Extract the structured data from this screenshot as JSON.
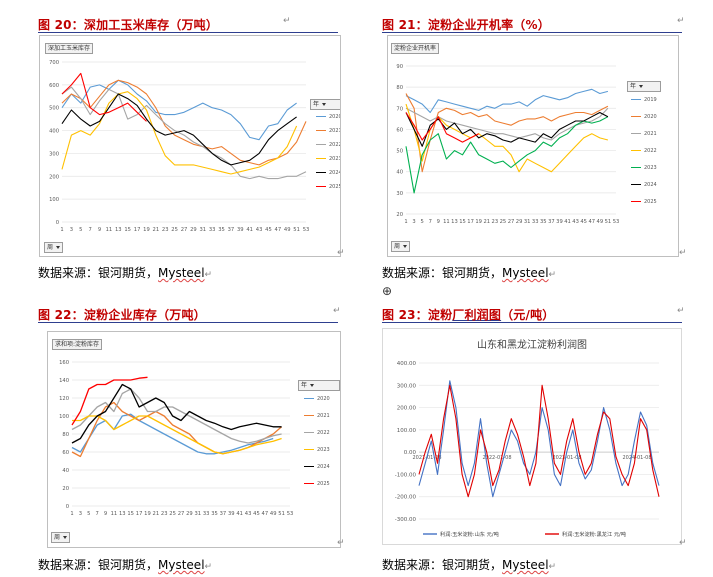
{
  "figure_20": {
    "heading": "图 20：深加工玉米库存（万吨）",
    "source_label": "数据来源：银河期货，",
    "source_brand": "Mysteel",
    "chip_title": "深加工玉米库存",
    "field_year": "年",
    "field_week": "周",
    "chart_data": {
      "type": "line",
      "y_ticks": [
        "0",
        "100",
        "200",
        "300",
        "400",
        "500",
        "600",
        "700"
      ],
      "ylim": [
        0,
        700
      ],
      "x": [
        1,
        3,
        5,
        7,
        9,
        11,
        13,
        15,
        17,
        19,
        21,
        23,
        25,
        27,
        29,
        31,
        33,
        35,
        37,
        39,
        41,
        43,
        45,
        47,
        49,
        51,
        53
      ],
      "x_labels": [
        "1",
        "3",
        "5",
        "7",
        "9",
        "11",
        "13",
        "15",
        "17",
        "19",
        "21",
        "23",
        "25",
        "27",
        "29",
        "31",
        "33",
        "35",
        "37",
        "39",
        "41",
        "43",
        "45",
        "47",
        "49",
        "51",
        "53"
      ],
      "grid": true,
      "legend_position": "right",
      "series": [
        {
          "name": "2020",
          "color": "#5b9bd5",
          "values": [
            500,
            560,
            520,
            590,
            600,
            580,
            620,
            600,
            560,
            530,
            480,
            470,
            470,
            480,
            500,
            520,
            500,
            490,
            470,
            430,
            370,
            360,
            420,
            430,
            490,
            520,
            null
          ]
        },
        {
          "name": "2021",
          "color": "#ed7d31",
          "values": [
            520,
            560,
            540,
            500,
            550,
            600,
            620,
            610,
            590,
            560,
            500,
            420,
            380,
            360,
            340,
            330,
            320,
            330,
            300,
            270,
            260,
            250,
            270,
            280,
            300,
            350,
            440
          ]
        },
        {
          "name": "2022",
          "color": "#a5a5a5",
          "values": [
            560,
            590,
            540,
            470,
            530,
            580,
            560,
            450,
            470,
            510,
            470,
            430,
            400,
            380,
            350,
            330,
            300,
            280,
            250,
            200,
            190,
            200,
            190,
            190,
            200,
            200,
            220
          ]
        },
        {
          "name": "2023",
          "color": "#ffc000",
          "values": [
            230,
            380,
            400,
            380,
            430,
            520,
            560,
            570,
            540,
            490,
            380,
            290,
            250,
            250,
            250,
            240,
            230,
            220,
            210,
            220,
            230,
            240,
            260,
            280,
            330,
            420,
            null
          ]
        },
        {
          "name": "2024",
          "color": "#000000",
          "values": [
            430,
            490,
            450,
            420,
            440,
            500,
            560,
            540,
            510,
            450,
            400,
            380,
            390,
            400,
            380,
            340,
            300,
            270,
            250,
            260,
            270,
            300,
            360,
            400,
            430,
            460,
            null
          ]
        },
        {
          "name": "2025",
          "color": "#ff0000",
          "values": [
            560,
            600,
            650,
            500,
            470,
            480,
            500,
            520,
            480,
            440,
            null,
            null,
            null,
            null,
            null,
            null,
            null,
            null,
            null,
            null,
            null,
            null,
            null,
            null,
            null,
            null,
            null
          ]
        }
      ]
    }
  },
  "figure_21": {
    "heading": "图 21：淀粉企业开机率（%）",
    "source_label": "数据来源：银河期货，",
    "source_brand": "Mysteel",
    "chip_title": "淀粉企业开机率",
    "field_year": "年",
    "field_week": "周",
    "chart_data": {
      "type": "line",
      "y_ticks": [
        "20",
        "30",
        "40",
        "50",
        "60",
        "70",
        "80",
        "90"
      ],
      "ylim": [
        20,
        90
      ],
      "x": [
        1,
        3,
        5,
        7,
        9,
        11,
        13,
        15,
        17,
        19,
        21,
        23,
        25,
        27,
        29,
        31,
        33,
        35,
        37,
        39,
        41,
        43,
        45,
        47,
        49,
        51,
        53
      ],
      "x_labels": [
        "1",
        "3",
        "5",
        "7",
        "9",
        "11",
        "13",
        "15",
        "17",
        "19",
        "21",
        "23",
        "25",
        "27",
        "29",
        "31",
        "33",
        "35",
        "37",
        "39",
        "41",
        "43",
        "45",
        "47",
        "49",
        "51",
        "53"
      ],
      "grid": true,
      "legend_position": "right",
      "series": [
        {
          "name": "2019",
          "color": "#5b9bd5",
          "values": [
            76,
            74,
            72,
            68,
            74,
            73,
            72,
            71,
            70,
            69,
            71,
            70,
            72,
            72,
            73,
            71,
            74,
            76,
            75,
            74,
            75,
            77,
            78,
            79,
            77,
            78,
            null
          ]
        },
        {
          "name": "2020",
          "color": "#ed7d31",
          "values": [
            77,
            70,
            40,
            55,
            68,
            70,
            69,
            67,
            68,
            66,
            67,
            64,
            63,
            62,
            64,
            65,
            65,
            66,
            64,
            66,
            67,
            68,
            68,
            67,
            69,
            71,
            null
          ]
        },
        {
          "name": "2021",
          "color": "#a5a5a5",
          "values": [
            70,
            68,
            66,
            64,
            66,
            64,
            63,
            62,
            61,
            60,
            59,
            58,
            58,
            57,
            56,
            57,
            58,
            56,
            55,
            58,
            60,
            62,
            63,
            64,
            66,
            70,
            null
          ]
        },
        {
          "name": "2022",
          "color": "#ffc000",
          "values": [
            72,
            60,
            45,
            60,
            66,
            62,
            60,
            58,
            56,
            58,
            55,
            52,
            52,
            48,
            40,
            46,
            44,
            42,
            40,
            44,
            48,
            52,
            56,
            58,
            56,
            55,
            null
          ]
        },
        {
          "name": "2023",
          "color": "#00b050",
          "values": [
            52,
            30,
            48,
            55,
            58,
            46,
            50,
            48,
            54,
            48,
            46,
            44,
            45,
            42,
            45,
            48,
            50,
            54,
            52,
            56,
            58,
            62,
            64,
            63,
            64,
            66,
            null
          ]
        },
        {
          "name": "2024",
          "color": "#000000",
          "values": [
            68,
            60,
            52,
            62,
            65,
            60,
            63,
            58,
            60,
            56,
            58,
            57,
            55,
            54,
            56,
            55,
            54,
            58,
            56,
            60,
            62,
            64,
            64,
            66,
            68,
            66,
            null
          ]
        },
        {
          "name": "2025",
          "color": "#ff0000",
          "values": [
            68,
            62,
            55,
            60,
            66,
            58,
            56,
            54,
            56,
            58,
            null,
            null,
            null,
            null,
            null,
            null,
            null,
            null,
            null,
            null,
            null,
            null,
            null,
            null,
            null,
            null,
            null
          ]
        }
      ]
    }
  },
  "figure_22": {
    "heading": "图 22：淀粉企业库存（万吨）",
    "source_label": "数据来源：银河期货，",
    "source_brand": "Mysteel",
    "chip_title": "求和项:淀粉库存",
    "field_year": "年",
    "field_week": "周",
    "chart_data": {
      "type": "line",
      "y_ticks": [
        "0",
        "20",
        "40",
        "60",
        "80",
        "100",
        "120",
        "140",
        "160"
      ],
      "ylim": [
        0,
        160
      ],
      "x_labels": [
        "1",
        "3",
        "5",
        "7",
        "9",
        "11",
        "13",
        "15",
        "17",
        "19",
        "21",
        "23",
        "25",
        "27",
        "29",
        "31",
        "33",
        "35",
        "37",
        "39",
        "41",
        "43",
        "45",
        "47",
        "49",
        "51",
        "53"
      ],
      "grid": true,
      "legend_position": "right",
      "series": [
        {
          "name": "2020",
          "color": "#5b9bd5",
          "values": [
            65,
            60,
            75,
            90,
            95,
            85,
            100,
            102,
            95,
            90,
            85,
            80,
            75,
            70,
            65,
            60,
            58,
            58,
            60,
            62,
            65,
            68,
            70,
            72,
            75,
            null,
            null
          ]
        },
        {
          "name": "2021",
          "color": "#ed7d31",
          "values": [
            60,
            55,
            75,
            95,
            110,
            115,
            105,
            100,
            95,
            100,
            105,
            100,
            90,
            85,
            80,
            70,
            65,
            60,
            58,
            60,
            62,
            65,
            70,
            75,
            80,
            88,
            null
          ]
        },
        {
          "name": "2022",
          "color": "#a5a5a5",
          "values": [
            85,
            90,
            100,
            110,
            115,
            105,
            125,
            130,
            120,
            105,
            105,
            110,
            110,
            105,
            100,
            95,
            90,
            85,
            80,
            75,
            72,
            70,
            72,
            75,
            78,
            80,
            null
          ]
        },
        {
          "name": "2023",
          "color": "#ffc000",
          "values": [
            95,
            95,
            100,
            100,
            95,
            85,
            90,
            95,
            100,
            100,
            95,
            90,
            85,
            80,
            75,
            70,
            65,
            60,
            58,
            60,
            62,
            65,
            68,
            70,
            72,
            75,
            null
          ]
        },
        {
          "name": "2024",
          "color": "#000000",
          "values": [
            70,
            75,
            90,
            100,
            105,
            120,
            135,
            130,
            110,
            115,
            120,
            115,
            100,
            95,
            105,
            100,
            95,
            92,
            88,
            85,
            88,
            90,
            92,
            90,
            88,
            88,
            null
          ]
        },
        {
          "name": "2025",
          "color": "#ff0000",
          "values": [
            90,
            105,
            130,
            135,
            135,
            140,
            140,
            140,
            142,
            143,
            null,
            null,
            null,
            null,
            null,
            null,
            null,
            null,
            null,
            null,
            null,
            null,
            null,
            null,
            null,
            null,
            null
          ]
        }
      ]
    }
  },
  "figure_23": {
    "heading_prefix": "图 23：淀粉",
    "heading_link": "厂利润图",
    "heading_suffix": "（元/吨）",
    "source_label": "数据来源：银河期货，",
    "source_brand": "Mysteel",
    "chart_data": {
      "type": "line",
      "title": "山东和黑龙江淀粉利润图",
      "y_ticks": [
        "400.00",
        "300.00",
        "200.00",
        "100.00",
        "0.00",
        "-100.00",
        "-200.00",
        "-300.00"
      ],
      "ylim": [
        -300,
        400
      ],
      "x_labels": [
        "2021-01-08",
        "2022-01-08",
        "2023-01-08",
        "2024-01-08"
      ],
      "grid": true,
      "legend_position": "bottom",
      "series": [
        {
          "name": "利润:玉米淀粉:山东 元/吨",
          "color": "#4472c4",
          "values": [
            -150,
            -50,
            50,
            -100,
            100,
            320,
            200,
            -50,
            -150,
            -50,
            150,
            -50,
            -200,
            -100,
            0,
            100,
            50,
            -50,
            -100,
            0,
            200,
            100,
            -100,
            -150,
            0,
            100,
            -50,
            -120,
            -80,
            50,
            200,
            100,
            -50,
            -150,
            -100,
            50,
            180,
            120,
            -50,
            -150
          ]
        },
        {
          "name": "利润:玉米淀粉:黑龙江 元/吨",
          "color": "#e00000",
          "values": [
            -100,
            0,
            80,
            -50,
            150,
            300,
            150,
            -100,
            -200,
            -100,
            100,
            0,
            -150,
            -80,
            50,
            150,
            80,
            -20,
            -150,
            -50,
            300,
            150,
            -50,
            -100,
            50,
            150,
            0,
            -100,
            -50,
            80,
            180,
            150,
            -20,
            -100,
            -150,
            -50,
            150,
            100,
            -80,
            -200
          ]
        }
      ]
    }
  }
}
